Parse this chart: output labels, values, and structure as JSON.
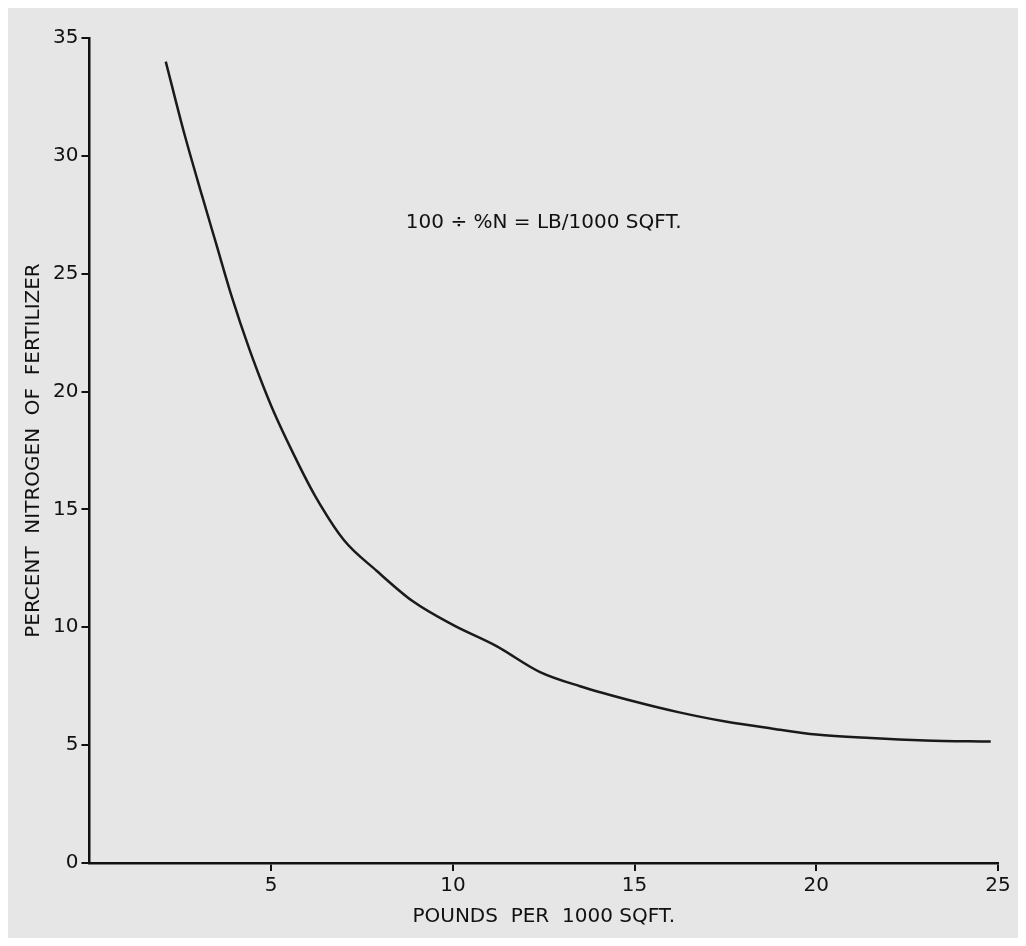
{
  "chart_data": {
    "type": "line",
    "xlabel": "POUNDS  PER  1000 SQFT.",
    "ylabel": "PERCENT  NITROGEN  OF  FERTILIZER",
    "annotations": [
      "100 ÷ %N = LB/1000 SQFT."
    ],
    "x": [
      2.1,
      2.6,
      3.1,
      3.5,
      3.9,
      4.4,
      5.0,
      5.6,
      6.2,
      7.0,
      7.9,
      8.9,
      10.0,
      11.2,
      12.4,
      13.5,
      15.0,
      16.2,
      17.5,
      18.8,
      20.0,
      21.5,
      23.0,
      24.8
    ],
    "series": [
      {
        "color": "#1a1a1a",
        "values": [
          34.0,
          31.0,
          28.3,
          26.2,
          24.1,
          21.8,
          19.4,
          17.4,
          15.6,
          13.7,
          12.4,
          11.1,
          10.1,
          9.2,
          8.1,
          7.5,
          6.85,
          6.4,
          6.0,
          5.7,
          5.45,
          5.3,
          5.2,
          5.15
        ]
      }
    ],
    "xlim": [
      0,
      25
    ],
    "xticks": [
      5,
      10,
      15,
      20,
      25
    ],
    "ylim": [
      0,
      35
    ],
    "yticks": [
      0,
      5,
      10,
      15,
      20,
      25,
      30,
      35
    ],
    "grid": false,
    "legend": false,
    "marker": "none",
    "line_style": "solid"
  }
}
